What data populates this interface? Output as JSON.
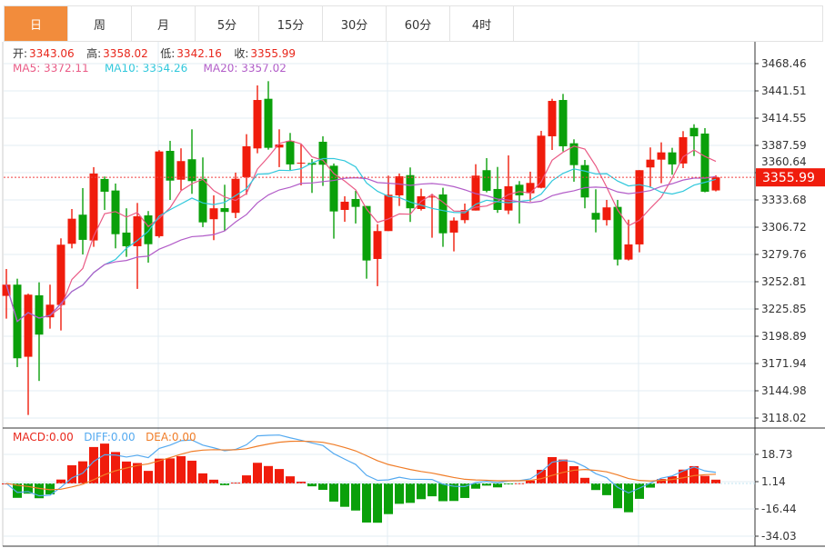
{
  "tabs": [
    {
      "label": "日",
      "active": true
    },
    {
      "label": "周"
    },
    {
      "label": "月"
    },
    {
      "label": "5分"
    },
    {
      "label": "15分"
    },
    {
      "label": "30分"
    },
    {
      "label": "60分"
    },
    {
      "label": "4时"
    }
  ],
  "info": {
    "open_label": "开:",
    "open": "3343.06",
    "high_label": "高:",
    "high": "3358.02",
    "low_label": "低:",
    "low": "3342.16",
    "close_label": "收:",
    "close": "3355.99",
    "ma5": "MA5: 3372.11",
    "ma10": "MA10: 3354.26",
    "ma20": "MA20: 3357.02"
  },
  "macd_legend": {
    "macd": "MACD:0.00",
    "diff": "DIFF:0.00",
    "dea": "DEA:0.00"
  },
  "colors": {
    "up": "#f01c0c",
    "down": "#0aa00a",
    "ma5": "#ea5a85",
    "ma10": "#30c8dc",
    "ma20": "#b25cc8",
    "diff": "#55aaf0",
    "dea": "#f07d28",
    "tab_active": "#f28c3c"
  },
  "chart_data": {
    "type": "candlestick",
    "last_price_label": "3355.99",
    "price_ticks": [
      "3468.46",
      "3441.51",
      "3414.55",
      "3387.59",
      "3360.64",
      "3333.68",
      "3306.72",
      "3279.76",
      "3252.81",
      "3225.85",
      "3198.89",
      "3171.94",
      "3144.98",
      "3118.02"
    ],
    "price_range": [
      3118.02,
      3468.46
    ],
    "macd_ticks": [
      "18.73",
      "1.14",
      "-16.44",
      "-34.03"
    ],
    "macd_range": [
      -34.03,
      18.73
    ],
    "ohlc": [
      [
        3238.8,
        3265.4,
        3216.3,
        3249.9
      ],
      [
        3249.9,
        3255.8,
        3168.4,
        3177.1
      ],
      [
        3178.6,
        3241.0,
        3121.1,
        3240.0
      ],
      [
        3239.4,
        3252.2,
        3154.7,
        3200.5
      ],
      [
        3217.6,
        3249.9,
        3206.4,
        3230.1
      ],
      [
        3229.8,
        3295.7,
        3204.6,
        3289.4
      ],
      [
        3290.3,
        3324.7,
        3285.8,
        3315.1
      ],
      [
        3319.1,
        3345.4,
        3279.8,
        3294.2
      ],
      [
        3293.6,
        3366.1,
        3287.3,
        3359.8
      ],
      [
        3354.4,
        3356.8,
        3323.8,
        3341.8
      ],
      [
        3343.0,
        3349.9,
        3285.8,
        3299.8
      ],
      [
        3301.4,
        3325.4,
        3277.4,
        3287.9
      ],
      [
        3287.9,
        3330.7,
        3245.7,
        3317.5
      ],
      [
        3318.4,
        3322.7,
        3271.7,
        3289.9
      ],
      [
        3297.8,
        3382.9,
        3296.3,
        3381.6
      ],
      [
        3382.2,
        3392.1,
        3333.7,
        3352.8
      ],
      [
        3353.7,
        3384.7,
        3343.3,
        3372.1
      ],
      [
        3373.9,
        3403.5,
        3339.7,
        3352.3
      ],
      [
        3354.6,
        3375.7,
        3306.8,
        3311.5
      ],
      [
        3314.6,
        3338.2,
        3293.9,
        3325.4
      ],
      [
        3325.6,
        3348.7,
        3303.2,
        3321.8
      ],
      [
        3320.9,
        3360.7,
        3315.7,
        3354.6
      ],
      [
        3356.2,
        3398.7,
        3338.8,
        3386.7
      ],
      [
        3384.6,
        3446.9,
        3379.8,
        3432.5
      ],
      [
        3433.7,
        3451.1,
        3383.4,
        3385.2
      ],
      [
        3385.5,
        3403.5,
        3366.1,
        3388.5
      ],
      [
        3392.1,
        3399.9,
        3363.1,
        3368.8
      ],
      [
        3369.7,
        3388.8,
        3348.1,
        3370.5
      ],
      [
        3370.2,
        3374.1,
        3340.6,
        3368.5
      ],
      [
        3391.2,
        3396.6,
        3347.5,
        3368.5
      ],
      [
        3367.5,
        3369.7,
        3295.4,
        3322.3
      ],
      [
        3323.8,
        3337.3,
        3312.1,
        3331.9
      ],
      [
        3334.6,
        3342.7,
        3310.4,
        3326.8
      ],
      [
        3327.7,
        3327.7,
        3255.8,
        3273.8
      ],
      [
        3275.3,
        3309.7,
        3248.4,
        3302.9
      ],
      [
        3302.9,
        3357.7,
        3302.9,
        3338.8
      ],
      [
        3338.2,
        3359.8,
        3327.7,
        3357.1
      ],
      [
        3358.2,
        3365.8,
        3311.9,
        3325.4
      ],
      [
        3324.7,
        3344.8,
        3323.2,
        3337.3
      ],
      [
        3336.4,
        3339.7,
        3296.3,
        3337.0
      ],
      [
        3339.1,
        3345.7,
        3287.3,
        3300.7
      ],
      [
        3301.4,
        3316.4,
        3282.8,
        3313.3
      ],
      [
        3313.7,
        3330.1,
        3310.6,
        3323.8
      ],
      [
        3323.2,
        3369.0,
        3323.2,
        3357.7
      ],
      [
        3363.1,
        3375.0,
        3341.2,
        3342.7
      ],
      [
        3344.5,
        3366.3,
        3320.9,
        3323.8
      ],
      [
        3323.2,
        3377.7,
        3319.6,
        3347.2
      ],
      [
        3348.7,
        3352.3,
        3310.4,
        3338.2
      ],
      [
        3340.3,
        3361.6,
        3332.2,
        3350.5
      ],
      [
        3345.7,
        3402.0,
        3345.1,
        3397.2
      ],
      [
        3396.6,
        3433.7,
        3383.1,
        3431.6
      ],
      [
        3432.5,
        3438.5,
        3381.6,
        3386.7
      ],
      [
        3389.7,
        3393.6,
        3351.7,
        3368.1
      ],
      [
        3368.1,
        3373.2,
        3325.4,
        3336.1
      ],
      [
        3320.9,
        3344.2,
        3301.6,
        3314.2
      ],
      [
        3313.7,
        3333.7,
        3308.3,
        3326.3
      ],
      [
        3326.8,
        3333.7,
        3268.8,
        3274.7
      ],
      [
        3274.7,
        3314.2,
        3273.8,
        3289.7
      ],
      [
        3289.7,
        3363.1,
        3281.9,
        3363.1
      ],
      [
        3365.8,
        3385.6,
        3345.7,
        3373.5
      ],
      [
        3373.5,
        3390.6,
        3350.2,
        3380.7
      ],
      [
        3380.7,
        3385.2,
        3358.6,
        3368.8
      ],
      [
        3369.7,
        3401.7,
        3365.1,
        3395.7
      ],
      [
        3404.9,
        3408.5,
        3377.1,
        3396.6
      ],
      [
        3399.3,
        3404.7,
        3341.2,
        3341.8
      ],
      [
        3343.06,
        3358.02,
        3342.16,
        3355.99
      ]
    ]
  }
}
